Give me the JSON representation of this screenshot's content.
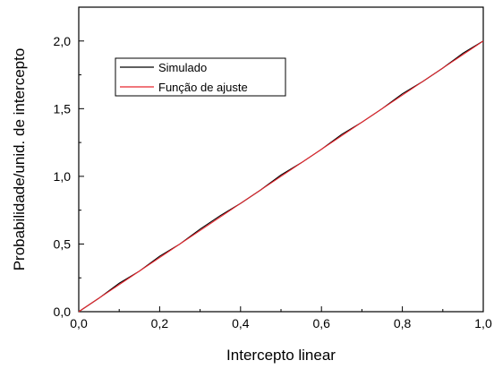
{
  "chart_data": {
    "type": "line",
    "title": "",
    "xlabel": "Intercepto linear",
    "ylabel": "Probabilidade/unid. de intercepto",
    "xlim": [
      0,
      1.0
    ],
    "ylim": [
      0,
      2.25
    ],
    "x_ticks": [
      0,
      0.2,
      0.4,
      0.6,
      0.8,
      1.0
    ],
    "x_tick_labels": [
      "0,0",
      "0,2",
      "0,4",
      "0,6",
      "0,8",
      "1,0"
    ],
    "y_ticks": [
      0,
      0.5,
      1.0,
      1.5,
      2.0
    ],
    "y_tick_labels": [
      "0,0",
      "0,5",
      "1,0",
      "1,5",
      "2,0"
    ],
    "grid": false,
    "legend_position": "top-left",
    "series": [
      {
        "name": "Simulado",
        "color": "#000000",
        "x": [
          0,
          0.05,
          0.1,
          0.15,
          0.2,
          0.25,
          0.3,
          0.35,
          0.4,
          0.45,
          0.5,
          0.55,
          0.6,
          0.65,
          0.7,
          0.75,
          0.8,
          0.85,
          0.9,
          0.95,
          1.0
        ],
        "y": [
          0,
          0.1,
          0.21,
          0.3,
          0.41,
          0.5,
          0.61,
          0.71,
          0.8,
          0.9,
          1.01,
          1.1,
          1.2,
          1.31,
          1.4,
          1.5,
          1.61,
          1.7,
          1.8,
          1.91,
          2.0
        ]
      },
      {
        "name": "Função de ajuste",
        "color": "#e8262d",
        "x": [
          0,
          1.0
        ],
        "y": [
          0,
          2.0
        ]
      }
    ]
  }
}
